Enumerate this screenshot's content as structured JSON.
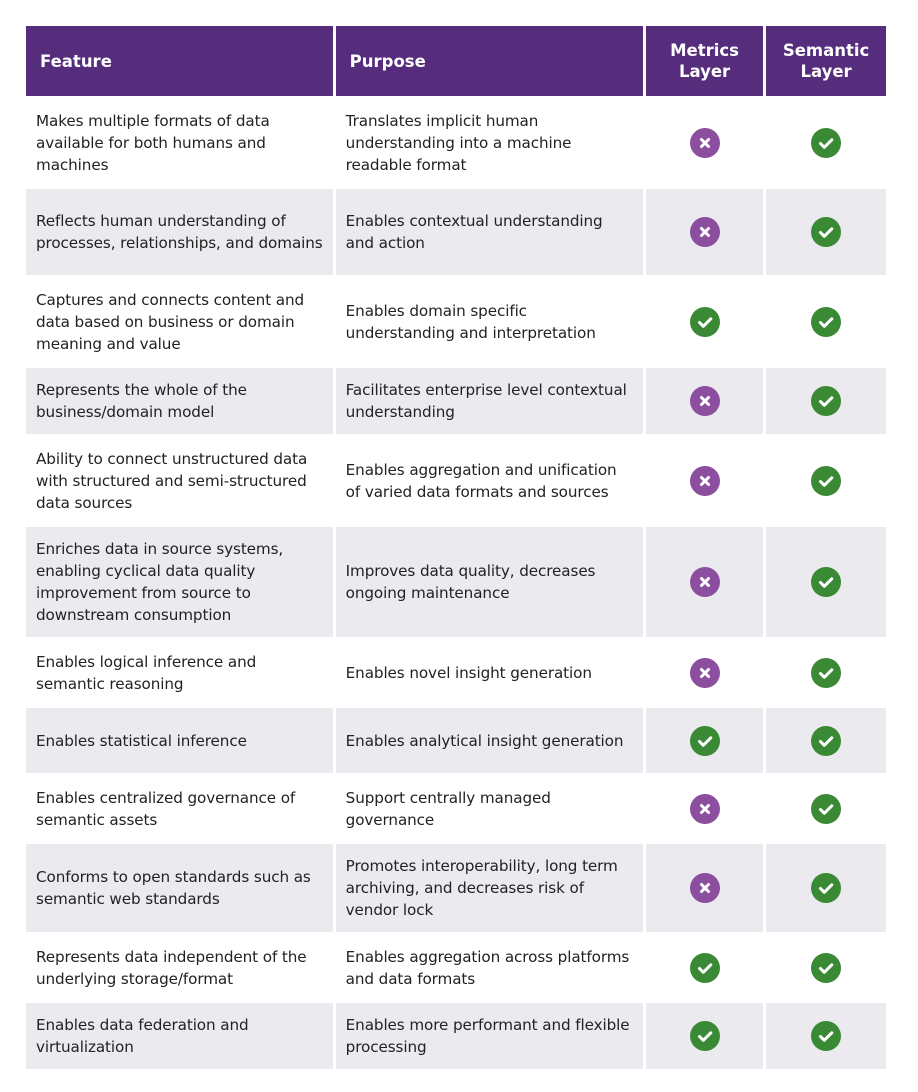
{
  "colors": {
    "header": "#552d7c",
    "check": "#3a8a35",
    "cross": "#8c4f9f",
    "alt_row": "#ebeaef"
  },
  "headers": {
    "feature": "Feature",
    "purpose": "Purpose",
    "metrics": "Metrics Layer",
    "semantic": "Semantic Layer"
  },
  "rows": [
    {
      "feature": "Makes multiple formats of data available for both humans and machines",
      "purpose": "Translates implicit human understanding into a machine readable format",
      "metrics": false,
      "semantic": true
    },
    {
      "feature": "Reflects human understanding of processes, relationships, and domains",
      "purpose": "Enables contextual understanding and action",
      "metrics": false,
      "semantic": true
    },
    {
      "feature": "Captures and connects content and data based on business or domain meaning and value",
      "purpose": "Enables domain specific understanding and interpretation",
      "metrics": true,
      "semantic": true
    },
    {
      "feature": "Represents the whole of the business/domain model",
      "purpose": "Facilitates enterprise level contextual understanding",
      "metrics": false,
      "semantic": true
    },
    {
      "feature": "Ability to connect unstructured data with structured and semi-structured data sources",
      "purpose": "Enables aggregation and unification of varied data formats and sources",
      "metrics": false,
      "semantic": true
    },
    {
      "feature": "Enriches data in source systems, enabling cyclical data quality improvement from source to downstream consumption",
      "purpose": "Improves data quality, decreases ongoing maintenance",
      "metrics": false,
      "semantic": true
    },
    {
      "feature": "Enables logical inference and semantic reasoning",
      "purpose": "Enables novel insight generation",
      "metrics": false,
      "semantic": true
    },
    {
      "feature": "Enables statistical inference",
      "purpose": "Enables analytical insight generation",
      "metrics": true,
      "semantic": true
    },
    {
      "feature": "Enables centralized governance of semantic assets",
      "purpose": "Support centrally managed governance",
      "metrics": false,
      "semantic": true
    },
    {
      "feature": "Conforms to open standards such as semantic web standards",
      "purpose": "Promotes interoperability, long term archiving, and decreases risk of vendor lock",
      "metrics": false,
      "semantic": true
    },
    {
      "feature": "Represents data independent of the underlying storage/format",
      "purpose": "Enables aggregation across platforms and data formats",
      "metrics": true,
      "semantic": true
    },
    {
      "feature": "Enables data federation and virtualization",
      "purpose": "Enables more performant and flexible processing",
      "metrics": true,
      "semantic": true
    }
  ]
}
